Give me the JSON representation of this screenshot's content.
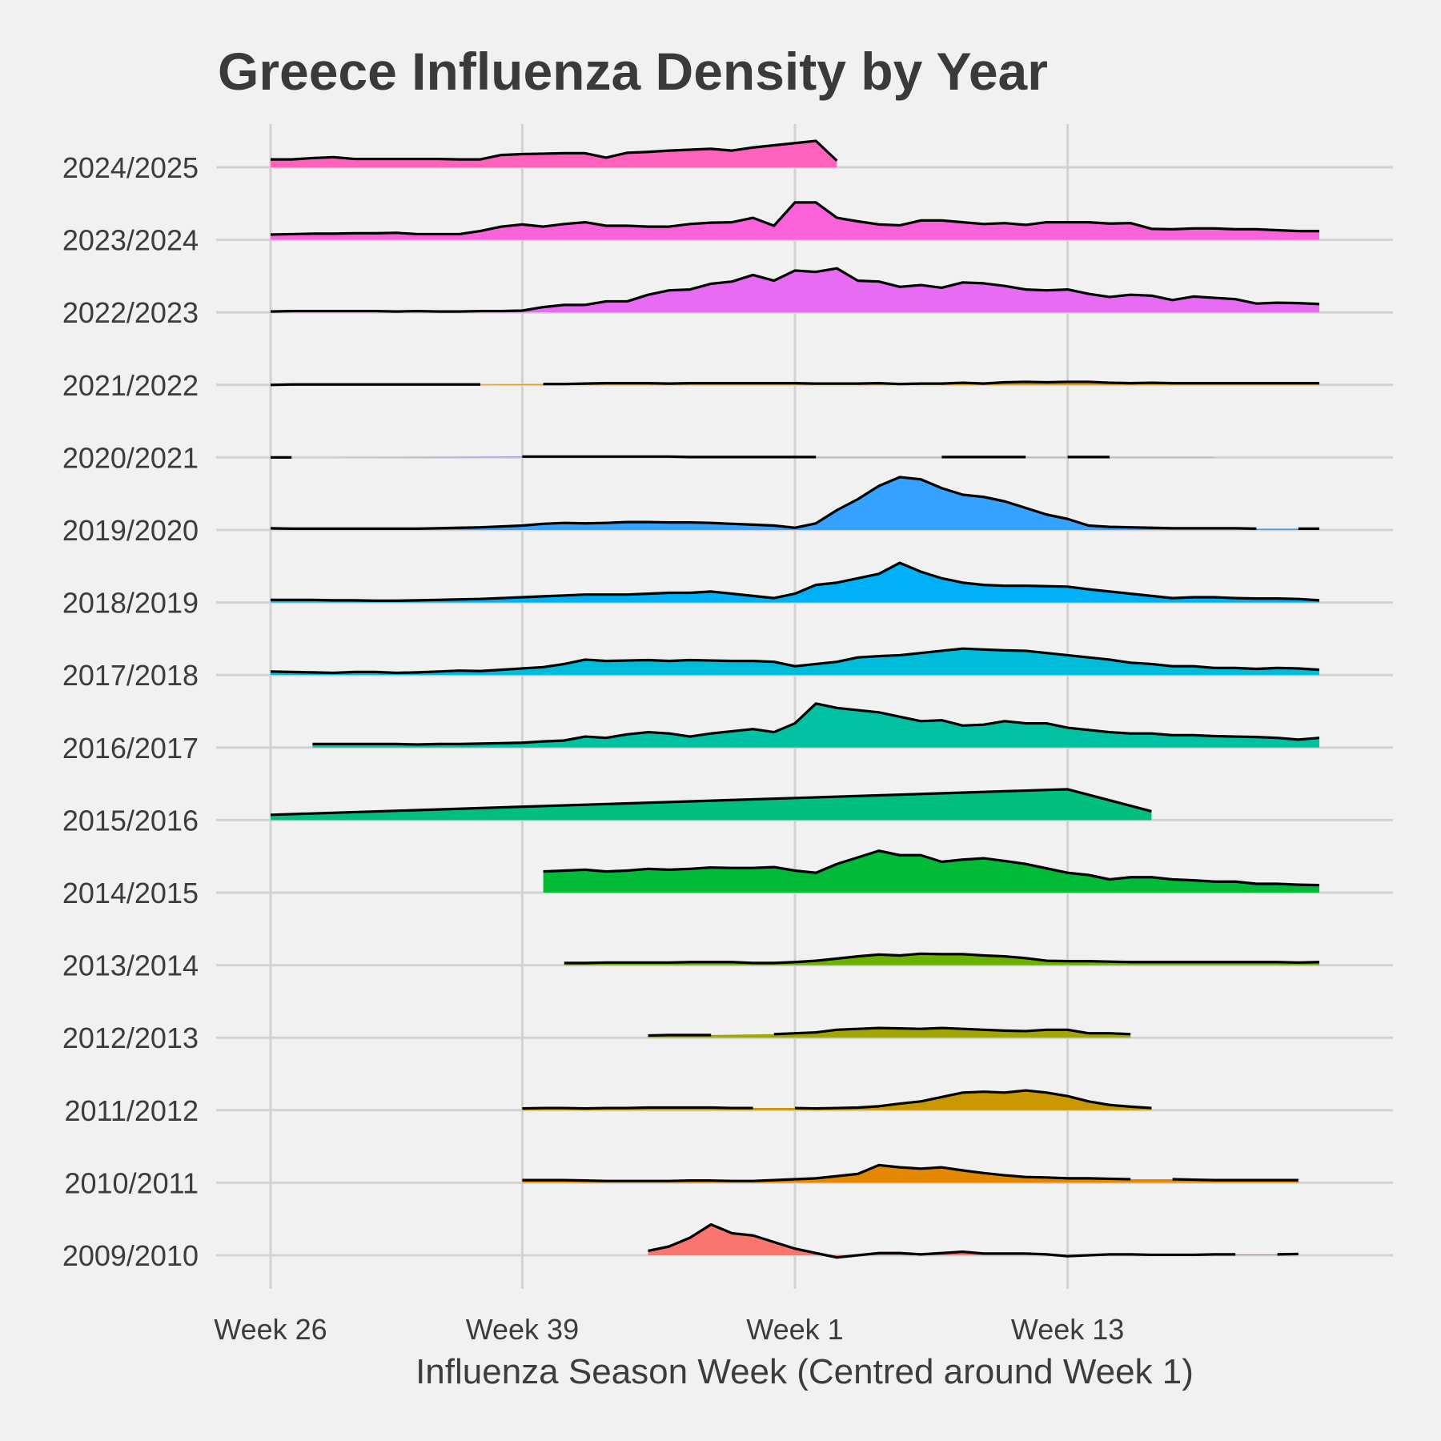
{
  "chart_data": {
    "type": "area",
    "subtype": "ridgeline",
    "title": "Greece Influenza Density by Year",
    "xlabel": "Influenza Season Week (Centred around Week 1)",
    "ylabel": "",
    "x_ticks": [
      {
        "label": "Week 26",
        "index": 0
      },
      {
        "label": "Week 39",
        "index": 12
      },
      {
        "label": "Week 1",
        "index": 25
      },
      {
        "label": "Week 13",
        "index": 38
      }
    ],
    "grid": true,
    "legend": "none",
    "series": [
      {
        "name": "2009/2010",
        "color": "#F8766D",
        "values": [
          null,
          null,
          null,
          null,
          null,
          null,
          null,
          null,
          null,
          null,
          null,
          null,
          null,
          null,
          null,
          null,
          null,
          null,
          0.01,
          0.02,
          0.04,
          0.07,
          0.05,
          0.045,
          0.03,
          0.015,
          0.005,
          -0.005,
          0.0,
          0.005,
          0.005,
          0.002,
          0.005,
          0.008,
          0.004,
          0.004,
          0.004,
          0.002,
          -0.002,
          0.0,
          0.002,
          0.002,
          0.001,
          0.001,
          0.001,
          0.002,
          0.002,
          null,
          0.002,
          0.003,
          null
        ]
      },
      {
        "name": "2010/2011",
        "color": "#E58700",
        "values": [
          null,
          null,
          null,
          null,
          null,
          null,
          null,
          null,
          null,
          null,
          null,
          null,
          0.006,
          0.006,
          0.006,
          0.005,
          0.004,
          0.004,
          0.004,
          0.004,
          0.005,
          0.005,
          0.004,
          0.004,
          0.006,
          0.008,
          0.01,
          0.015,
          0.02,
          0.04,
          0.035,
          0.032,
          0.035,
          0.028,
          0.022,
          0.017,
          0.013,
          0.012,
          0.01,
          0.01,
          0.009,
          0.008,
          null,
          0.008,
          0.007,
          0.006,
          0.006,
          0.006,
          0.006,
          0.006,
          null
        ]
      },
      {
        "name": "2011/2012",
        "color": "#C99800",
        "values": [
          null,
          null,
          null,
          null,
          null,
          null,
          null,
          null,
          null,
          null,
          null,
          null,
          0.004,
          0.005,
          0.005,
          0.004,
          0.005,
          0.005,
          0.006,
          0.006,
          0.006,
          0.006,
          0.005,
          0.005,
          null,
          0.005,
          0.004,
          0.005,
          0.006,
          0.009,
          0.015,
          0.02,
          0.03,
          0.04,
          0.042,
          0.04,
          0.045,
          0.04,
          0.032,
          0.02,
          0.012,
          0.008,
          0.005,
          null,
          null,
          null,
          null,
          null,
          null,
          null,
          null
        ]
      },
      {
        "name": "2012/2013",
        "color": "#A3A500",
        "values": [
          null,
          null,
          null,
          null,
          null,
          null,
          null,
          null,
          null,
          null,
          null,
          null,
          null,
          null,
          null,
          null,
          null,
          null,
          0.005,
          0.006,
          0.006,
          0.006,
          null,
          null,
          0.008,
          0.01,
          0.012,
          0.018,
          0.02,
          0.022,
          0.021,
          0.02,
          0.022,
          0.02,
          0.018,
          0.016,
          0.015,
          0.018,
          0.018,
          0.01,
          0.01,
          0.008,
          null,
          null,
          null,
          null,
          null,
          null,
          null,
          null,
          null
        ]
      },
      {
        "name": "2013/2014",
        "color": "#6BB100",
        "values": [
          null,
          null,
          null,
          null,
          null,
          null,
          null,
          null,
          null,
          null,
          null,
          null,
          null,
          null,
          0.005,
          0.005,
          0.006,
          0.006,
          0.006,
          0.006,
          0.007,
          0.007,
          0.007,
          0.005,
          0.005,
          0.007,
          0.01,
          0.015,
          0.02,
          0.024,
          0.022,
          0.026,
          0.025,
          0.025,
          0.022,
          0.02,
          0.016,
          0.01,
          0.009,
          0.009,
          0.008,
          0.007,
          0.007,
          0.007,
          0.007,
          0.007,
          0.007,
          0.007,
          0.007,
          0.006,
          0.007
        ]
      },
      {
        "name": "2014/2015",
        "color": "#00BA38",
        "values": [
          null,
          null,
          null,
          null,
          null,
          null,
          null,
          null,
          null,
          null,
          null,
          null,
          null,
          0.048,
          0.05,
          0.052,
          0.048,
          0.05,
          0.054,
          0.052,
          0.054,
          0.057,
          0.056,
          0.056,
          0.058,
          0.05,
          0.045,
          0.065,
          0.08,
          0.095,
          0.085,
          0.085,
          0.07,
          0.075,
          0.078,
          0.072,
          0.065,
          0.055,
          0.045,
          0.04,
          0.03,
          0.035,
          0.035,
          0.03,
          0.028,
          0.025,
          0.025,
          0.02,
          0.02,
          0.018,
          0.017
        ]
      },
      {
        "name": "2015/2016",
        "color": "#00BF7D",
        "values": [
          0.012,
          null,
          null,
          null,
          null,
          null,
          null,
          null,
          null,
          null,
          null,
          null,
          null,
          null,
          null,
          null,
          null,
          null,
          null,
          null,
          null,
          null,
          null,
          null,
          null,
          null,
          null,
          null,
          null,
          null,
          null,
          null,
          null,
          null,
          null,
          null,
          null,
          null,
          0.07,
          null,
          null,
          null,
          0.02,
          null,
          null,
          null,
          null,
          null,
          null,
          null,
          null
        ]
      },
      {
        "name": "2016/2017",
        "color": "#00C1A3",
        "values": [
          null,
          null,
          0.008,
          0.008,
          0.008,
          0.008,
          0.008,
          0.007,
          0.008,
          0.008,
          0.009,
          0.01,
          0.011,
          0.014,
          0.016,
          0.025,
          0.022,
          0.03,
          0.035,
          0.032,
          0.025,
          0.032,
          0.037,
          0.042,
          0.035,
          0.055,
          0.1,
          0.09,
          0.085,
          0.08,
          0.07,
          0.06,
          0.062,
          0.05,
          0.052,
          0.06,
          0.055,
          0.055,
          0.045,
          0.04,
          0.035,
          0.032,
          0.032,
          0.028,
          0.028,
          0.026,
          0.025,
          0.024,
          0.022,
          0.018,
          0.022
        ]
      },
      {
        "name": "2017/2018",
        "color": "#00BCD8",
        "values": [
          0.008,
          0.007,
          0.006,
          0.005,
          0.007,
          0.007,
          0.005,
          0.006,
          0.008,
          0.01,
          0.009,
          0.012,
          0.015,
          0.018,
          0.025,
          0.035,
          0.032,
          0.033,
          0.034,
          0.032,
          0.034,
          0.033,
          0.032,
          0.032,
          0.03,
          0.02,
          0.025,
          0.03,
          0.04,
          0.043,
          0.045,
          0.05,
          0.055,
          0.06,
          0.058,
          0.056,
          0.055,
          0.05,
          0.045,
          0.04,
          0.035,
          0.028,
          0.025,
          0.02,
          0.02,
          0.016,
          0.016,
          0.014,
          0.016,
          0.015,
          0.012
        ]
      },
      {
        "name": "2018/2019",
        "color": "#00B0F6",
        "values": [
          0.006,
          0.006,
          0.006,
          0.005,
          0.005,
          0.004,
          0.004,
          0.005,
          0.006,
          0.007,
          0.008,
          0.01,
          0.012,
          0.014,
          0.016,
          0.018,
          0.018,
          0.018,
          0.02,
          0.022,
          0.022,
          0.025,
          0.02,
          0.015,
          0.01,
          0.02,
          0.04,
          0.045,
          0.055,
          0.065,
          0.09,
          0.07,
          0.055,
          0.045,
          0.04,
          0.038,
          0.038,
          0.037,
          0.036,
          0.03,
          0.025,
          0.02,
          0.015,
          0.01,
          0.012,
          0.012,
          0.01,
          0.009,
          0.009,
          0.008,
          0.005
        ]
      },
      {
        "name": "2019/2020",
        "color": "#35A2FF",
        "values": [
          0.004,
          0.003,
          0.003,
          0.003,
          0.003,
          0.003,
          0.003,
          0.003,
          0.004,
          0.005,
          0.006,
          0.008,
          0.01,
          0.014,
          0.016,
          0.015,
          0.016,
          0.018,
          0.018,
          0.017,
          0.017,
          0.016,
          0.014,
          0.012,
          0.01,
          0.005,
          0.015,
          0.045,
          0.07,
          0.1,
          0.12,
          0.115,
          0.095,
          0.08,
          0.075,
          0.065,
          0.05,
          0.035,
          0.025,
          0.01,
          0.007,
          0.006,
          0.005,
          0.004,
          0.004,
          0.004,
          0.004,
          0.003,
          null,
          0.003,
          0.003
        ]
      },
      {
        "name": "2020/2021",
        "color": "#9590FF",
        "values": [
          0.0,
          0.0,
          null,
          0.0,
          null,
          null,
          null,
          null,
          null,
          null,
          null,
          null,
          0.002,
          0.002,
          0.002,
          0.002,
          0.002,
          0.002,
          0.002,
          0.002,
          0.001,
          0.001,
          0.001,
          0.001,
          0.001,
          0.001,
          0.001,
          null,
          null,
          null,
          null,
          null,
          0.001,
          0.001,
          0.001,
          0.001,
          0.001,
          null,
          0.001,
          0.001,
          0.001,
          null,
          null,
          null,
          null,
          0.001,
          null,
          null,
          null,
          null,
          null
        ]
      },
      {
        "name": "2021/2022",
        "color": "#D89000",
        "values": [
          0.0,
          0.001,
          0.001,
          0.001,
          0.001,
          0.001,
          0.001,
          0.001,
          0.001,
          0.001,
          0.001,
          null,
          null,
          0.002,
          0.002,
          0.003,
          0.004,
          0.004,
          0.004,
          0.003,
          0.004,
          0.004,
          0.004,
          0.004,
          0.004,
          0.004,
          0.003,
          0.003,
          0.003,
          0.004,
          0.002,
          0.003,
          0.003,
          0.005,
          0.003,
          0.006,
          0.007,
          0.006,
          0.007,
          0.007,
          0.005,
          0.004,
          0.005,
          0.004,
          0.004,
          0.004,
          0.004,
          0.004,
          0.004,
          0.004,
          0.004
        ]
      },
      {
        "name": "2022/2023",
        "color": "#E76BF3",
        "values": [
          0.002,
          0.003,
          0.003,
          0.003,
          0.003,
          0.003,
          0.002,
          0.003,
          0.002,
          0.002,
          0.003,
          0.003,
          0.004,
          0.012,
          0.017,
          0.017,
          0.025,
          0.025,
          0.04,
          0.05,
          0.052,
          0.065,
          0.07,
          0.085,
          0.072,
          0.095,
          0.092,
          0.1,
          0.072,
          0.07,
          0.058,
          0.062,
          0.056,
          0.068,
          0.066,
          0.06,
          0.052,
          0.05,
          0.052,
          0.042,
          0.035,
          0.04,
          0.038,
          0.028,
          0.036,
          0.033,
          0.03,
          0.02,
          0.022,
          0.021,
          0.019
        ]
      },
      {
        "name": "2023/2024",
        "color": "#FA62DB",
        "values": [
          0.012,
          0.013,
          0.014,
          0.014,
          0.015,
          0.015,
          0.016,
          0.013,
          0.013,
          0.013,
          0.02,
          0.03,
          0.035,
          0.03,
          0.036,
          0.04,
          0.032,
          0.032,
          0.03,
          0.03,
          0.036,
          0.039,
          0.04,
          0.05,
          0.032,
          0.085,
          0.085,
          0.05,
          0.042,
          0.035,
          0.033,
          0.044,
          0.044,
          0.04,
          0.036,
          0.038,
          0.034,
          0.04,
          0.04,
          0.04,
          0.037,
          0.038,
          0.025,
          0.024,
          0.026,
          0.026,
          0.024,
          0.024,
          0.022,
          0.02,
          0.02
        ]
      },
      {
        "name": "2024/2025",
        "color": "#FF62BC",
        "values": [
          0.018,
          0.018,
          0.021,
          0.023,
          0.019,
          0.019,
          0.019,
          0.019,
          0.019,
          0.018,
          0.018,
          0.028,
          0.03,
          0.031,
          0.032,
          0.032,
          0.022,
          0.033,
          0.035,
          0.038,
          0.04,
          0.042,
          0.038,
          0.045,
          0.05,
          0.055,
          0.06,
          0.015,
          null,
          null,
          null,
          null,
          null,
          null,
          null,
          null,
          null,
          null,
          null,
          null,
          null,
          null,
          null,
          null,
          null,
          null,
          null,
          null,
          null,
          null,
          null
        ]
      }
    ]
  }
}
